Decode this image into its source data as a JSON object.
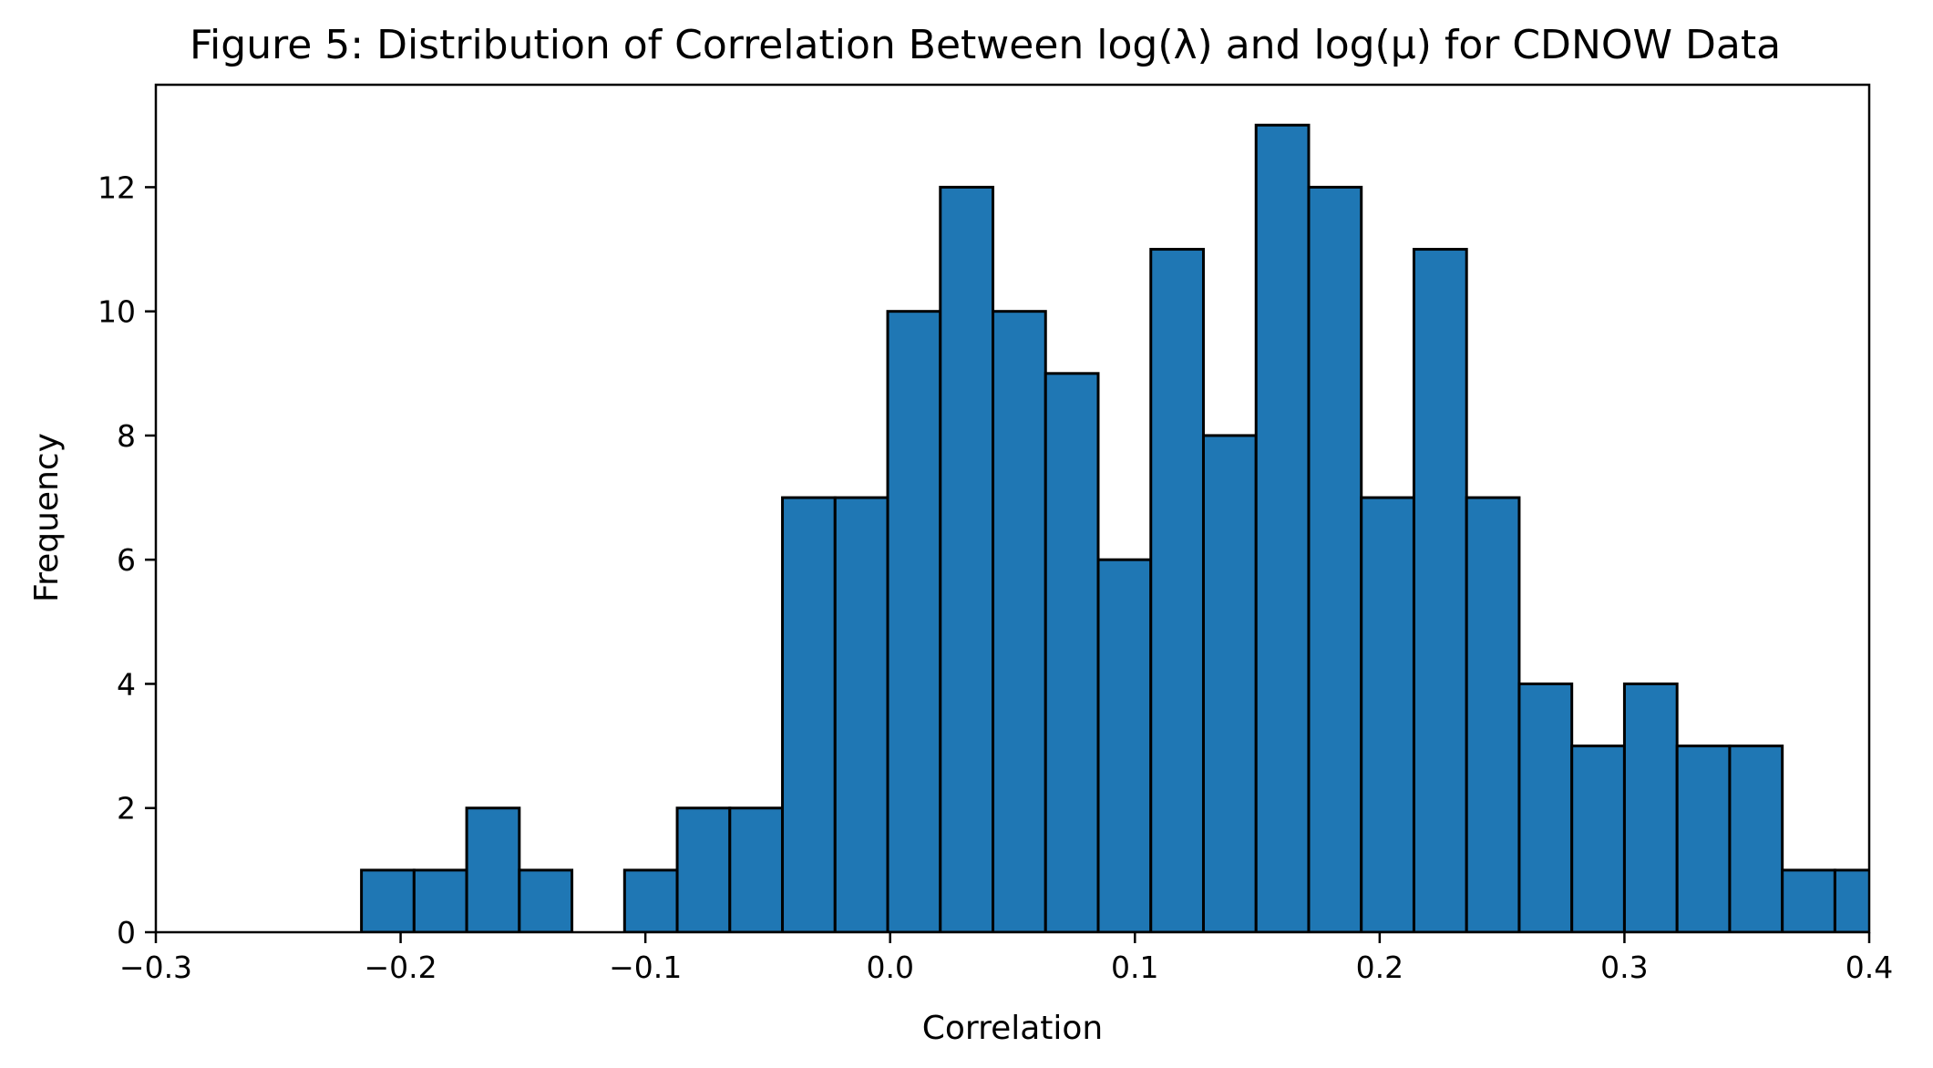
{
  "chart_data": {
    "type": "bar",
    "title": "Figure 5: Distribution of Correlation Between log(λ) and log(μ) for CDNOW Data",
    "xlabel": "Correlation",
    "ylabel": "Frequency",
    "xlim": [
      -0.3,
      0.4
    ],
    "ylim": [
      0,
      13.65
    ],
    "xticks": [
      -0.3,
      -0.2,
      -0.1,
      0.0,
      0.1,
      0.2,
      0.3,
      0.4
    ],
    "xtick_labels": [
      "−0.3",
      "−0.2",
      "−0.1",
      "0.0",
      "0.1",
      "0.2",
      "0.3",
      "0.4"
    ],
    "yticks": [
      0,
      2,
      4,
      6,
      8,
      10,
      12
    ],
    "ytick_labels": [
      "0",
      "2",
      "4",
      "6",
      "8",
      "10",
      "12"
    ],
    "bin_edges": [
      -0.216,
      -0.1945,
      -0.173,
      -0.1515,
      -0.13,
      -0.1085,
      -0.087,
      -0.0655,
      -0.044,
      -0.0225,
      -0.001,
      0.0205,
      0.042,
      0.0635,
      0.085,
      0.1065,
      0.128,
      0.1495,
      0.171,
      0.1925,
      0.214,
      0.2355,
      0.257,
      0.2785,
      0.3,
      0.3215,
      0.343,
      0.3645,
      0.386,
      0.4075
    ],
    "counts": [
      1,
      1,
      2,
      1,
      0,
      1,
      2,
      2,
      7,
      7,
      10,
      12,
      10,
      9,
      6,
      11,
      8,
      13,
      12,
      7,
      11,
      7,
      4,
      3,
      4,
      3,
      3,
      1,
      1
    ],
    "grid": false,
    "bar_color": "#1f77b4",
    "edge_color": "#000000"
  }
}
